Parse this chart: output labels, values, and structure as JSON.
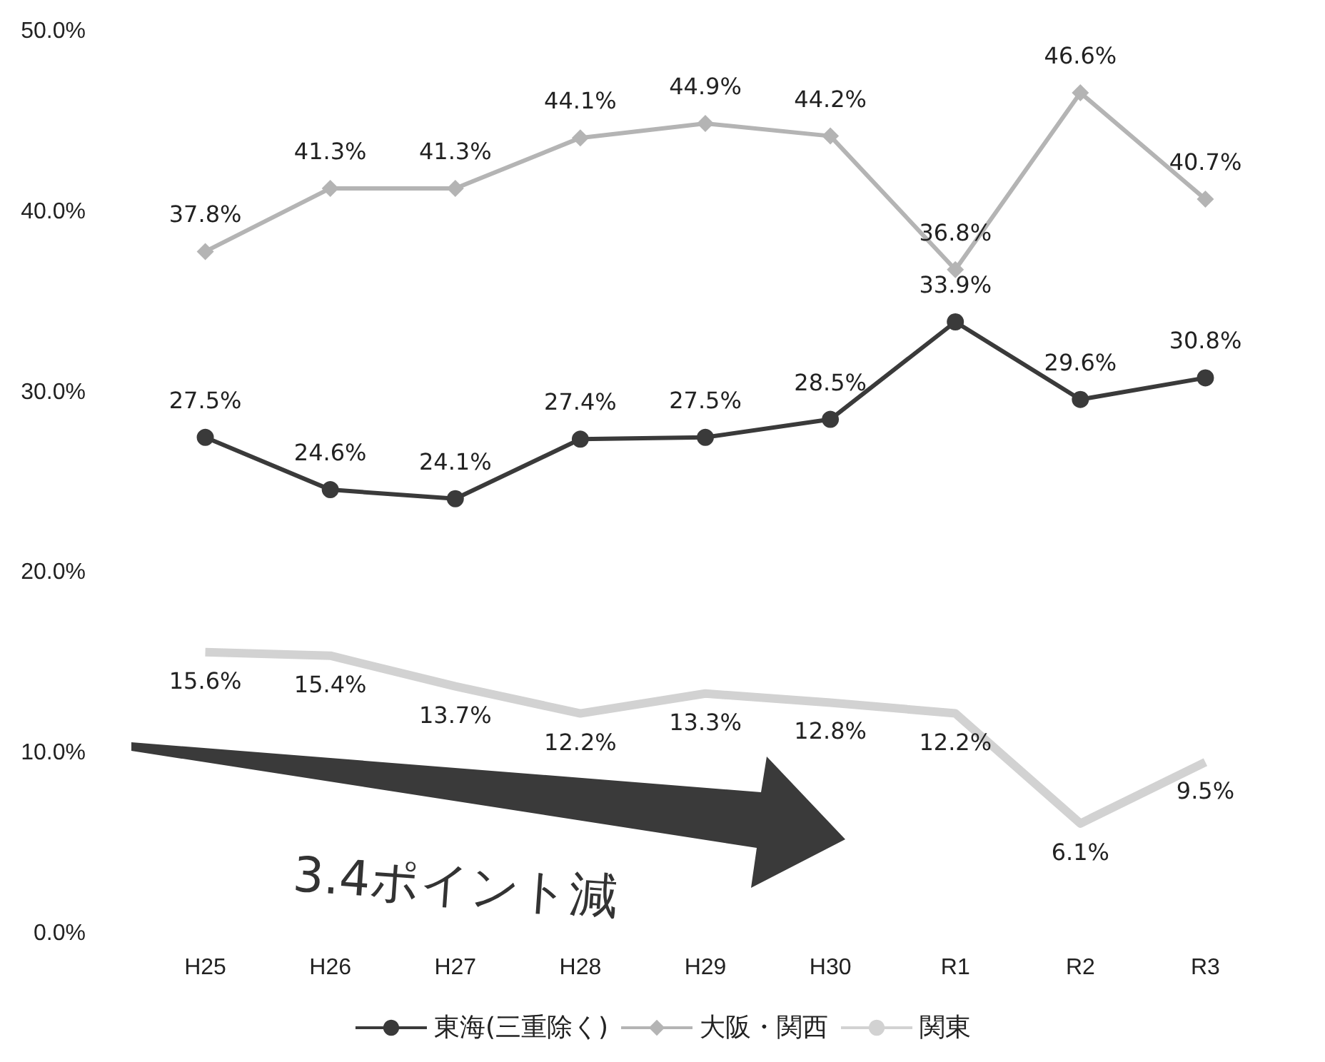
{
  "chart_data": {
    "type": "line",
    "categories": [
      "H25",
      "H26",
      "H27",
      "H28",
      "H29",
      "H30",
      "R1",
      "R2",
      "R3"
    ],
    "series": [
      {
        "name": "東海(三重除く)",
        "color": "#3a3a3a",
        "marker": "circle",
        "values": [
          27.5,
          24.6,
          24.1,
          27.4,
          27.5,
          28.5,
          33.9,
          29.6,
          30.8
        ],
        "value_labels": [
          "27.5%",
          "24.6%",
          "24.1%",
          "27.4%",
          "27.5%",
          "28.5%",
          "33.9%",
          "29.6%",
          "30.8%"
        ]
      },
      {
        "name": "大阪・関西",
        "color": "#b4b4b4",
        "marker": "diamond",
        "values": [
          37.8,
          41.3,
          41.3,
          44.1,
          44.9,
          44.2,
          36.8,
          46.6,
          40.7
        ],
        "value_labels": [
          "37.8%",
          "41.3%",
          "41.3%",
          "44.1%",
          "44.9%",
          "44.2%",
          "36.8%",
          "46.6%",
          "40.7%"
        ]
      },
      {
        "name": "関東",
        "color": "#d2d2d2",
        "marker": "none",
        "values": [
          15.6,
          15.4,
          13.7,
          12.2,
          13.3,
          12.8,
          12.2,
          6.1,
          9.5
        ],
        "value_labels": [
          "15.6%",
          "15.4%",
          "13.7%",
          "12.2%",
          "13.3%",
          "12.8%",
          "12.2%",
          "6.1%",
          "9.5%"
        ]
      }
    ],
    "ylim": [
      0,
      50
    ],
    "yticks": [
      {
        "value": 0,
        "label": "0.0%"
      },
      {
        "value": 10,
        "label": "10.0%"
      },
      {
        "value": 20,
        "label": "20.0%"
      },
      {
        "value": 30,
        "label": "30.0%"
      },
      {
        "value": 40,
        "label": "40.0%"
      },
      {
        "value": 50,
        "label": "50.0%"
      }
    ],
    "grid": false,
    "legend": "bottom",
    "annotations": [
      "3.4ポイント減"
    ]
  }
}
